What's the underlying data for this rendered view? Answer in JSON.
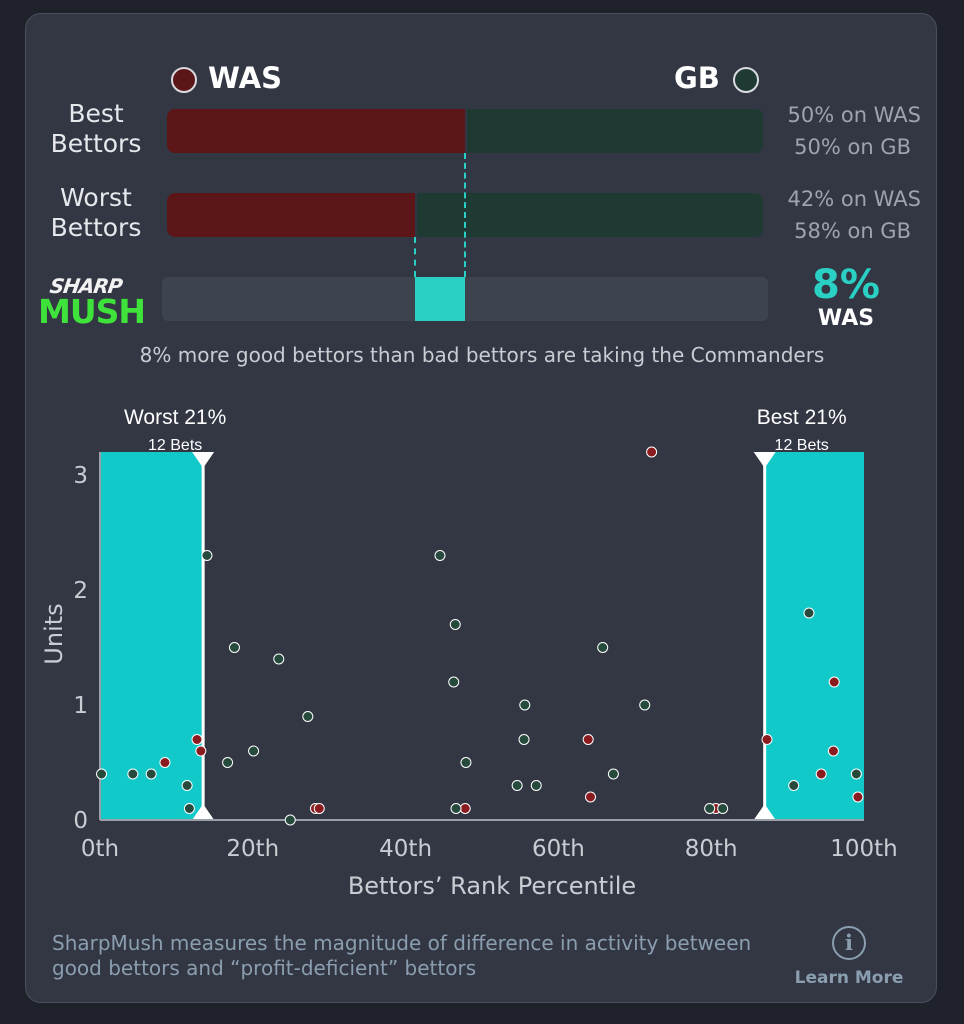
{
  "teams": {
    "left": {
      "name": "WAS",
      "color": "#5c1618"
    },
    "right": {
      "name": "GB",
      "color": "#1f3a33"
    }
  },
  "rows": [
    {
      "label": "Best Bettors",
      "was_pct": 50,
      "text1": "50% on WAS",
      "text2": "50% on GB"
    },
    {
      "label": "Worst Bettors",
      "was_pct": 42,
      "text1": "42% on WAS",
      "text2": "58% on GB"
    }
  ],
  "logo": {
    "top": "SHARP",
    "bottom": "MUSH"
  },
  "sharpmush": {
    "value_text": "8%",
    "team": "WAS",
    "value": 8
  },
  "summary": "8% more good bettors than bad bettors are taking the Commanders",
  "chart_data": {
    "type": "scatter",
    "xlabel": "Bettors’ Rank Percentile",
    "ylabel": "Units",
    "xlim": [
      0,
      100
    ],
    "ylim": [
      0,
      3.2
    ],
    "xticks": [
      {
        "v": 0,
        "label": "0th"
      },
      {
        "v": 20,
        "label": "20th"
      },
      {
        "v": 40,
        "label": "40th"
      },
      {
        "v": 60,
        "label": "60th"
      },
      {
        "v": 80,
        "label": "80th"
      },
      {
        "v": 100,
        "label": "100th"
      }
    ],
    "yticks": [
      {
        "v": 0,
        "label": "0"
      },
      {
        "v": 1,
        "label": "1"
      },
      {
        "v": 2,
        "label": "2"
      },
      {
        "v": 3,
        "label": "3"
      }
    ],
    "highlight": {
      "worst": {
        "x_end": 13.5,
        "title": "Worst 21%",
        "sub": "12 Bets"
      },
      "best": {
        "x_start": 87,
        "title": "Best 21%",
        "sub": "12 Bets"
      }
    },
    "series": [
      {
        "name": "WAS",
        "color": "#8a1c1f",
        "points": [
          [
            8.5,
            0.5
          ],
          [
            12.7,
            0.7
          ],
          [
            13.2,
            0.6
          ],
          [
            28.2,
            0.1
          ],
          [
            28.7,
            0.1
          ],
          [
            47.8,
            0.1
          ],
          [
            63.9,
            0.7
          ],
          [
            64.2,
            0.2
          ],
          [
            80.6,
            0.1
          ],
          [
            87.3,
            0.7
          ],
          [
            96.1,
            1.2
          ],
          [
            96.0,
            0.6
          ],
          [
            94.4,
            0.4
          ],
          [
            99.2,
            0.2
          ]
        ]
      },
      {
        "name": "GB",
        "color": "#264a3c",
        "points": [
          [
            0.2,
            0.4
          ],
          [
            4.3,
            0.4
          ],
          [
            6.7,
            0.4
          ],
          [
            11.4,
            0.3
          ],
          [
            11.7,
            0.1
          ],
          [
            14.0,
            2.3
          ],
          [
            16.7,
            0.5
          ],
          [
            17.6,
            1.5
          ],
          [
            20.1,
            0.6
          ],
          [
            23.4,
            1.4
          ],
          [
            24.9,
            0.0
          ],
          [
            27.2,
            0.9
          ],
          [
            44.5,
            2.3
          ],
          [
            46.3,
            1.2
          ],
          [
            46.5,
            1.7
          ],
          [
            46.6,
            0.1
          ],
          [
            47.9,
            0.5
          ],
          [
            54.6,
            0.3
          ],
          [
            55.5,
            0.7
          ],
          [
            55.6,
            1.0
          ],
          [
            57.1,
            0.3
          ],
          [
            65.8,
            1.5
          ],
          [
            67.2,
            0.4
          ],
          [
            71.3,
            1.0
          ],
          [
            79.8,
            0.1
          ],
          [
            81.5,
            0.1
          ],
          [
            90.8,
            0.3
          ],
          [
            92.8,
            1.8
          ],
          [
            99.0,
            0.4
          ]
        ]
      },
      {
        "name": "",
        "color": "#8a1c1f",
        "points": [
          [
            72.2,
            3.2
          ]
        ]
      }
    ]
  },
  "footer": {
    "text": "SharpMush measures the magnitude of difference in activity between good bettors and “profit-deficient” bettors",
    "learn_more": "Learn More",
    "info_glyph": "i"
  }
}
